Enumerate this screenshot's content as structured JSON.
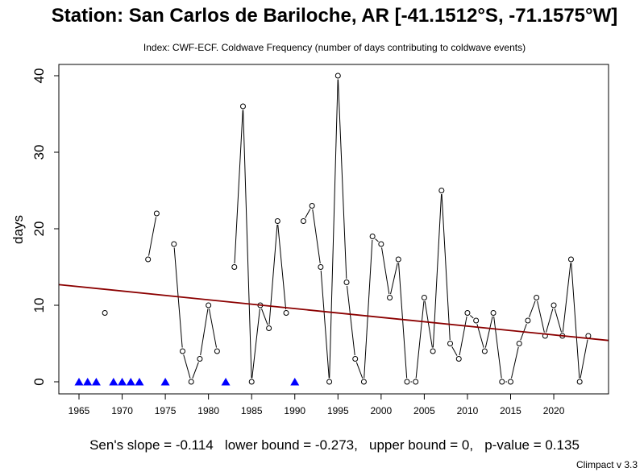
{
  "header": {
    "title": "Station: San Carlos de Bariloche, AR [-41.1512°S, -71.1575°W]",
    "subtitle": "Index: CWF-ECF. Coldwave Frequency (number of days contributing to coldwave events)"
  },
  "footer": {
    "stats": "Sen's slope = -0.114   lower bound = -0.273,   upper bound = 0,   p-value = 0.135",
    "credit": "Climpact v 3.3"
  },
  "colors": {
    "line": "#000000",
    "trend": "#8b0000",
    "missing_marker": "#0000ff",
    "axis": "#000000"
  },
  "chart_data": {
    "type": "line",
    "title": "Station: San Carlos de Bariloche, AR [-41.1512°S, -71.1575°W]",
    "subtitle": "Index: CWF-ECF. Coldwave Frequency (number of days contributing to coldwave events)",
    "xlabel": "",
    "ylabel": "days",
    "xlim": [
      1962.7,
      2026.4
    ],
    "ylim": [
      -1.6,
      41.6
    ],
    "xticks": [
      1965,
      1970,
      1975,
      1980,
      1985,
      1990,
      1995,
      2000,
      2005,
      2010,
      2015,
      2020
    ],
    "yticks": [
      0,
      10,
      20,
      30,
      40
    ],
    "grid": false,
    "legend": null,
    "x": [
      1965,
      1966,
      1967,
      1968,
      1969,
      1970,
      1971,
      1972,
      1973,
      1974,
      1975,
      1976,
      1977,
      1978,
      1979,
      1980,
      1981,
      1982,
      1983,
      1984,
      1985,
      1986,
      1987,
      1988,
      1989,
      1990,
      1991,
      1992,
      1993,
      1994,
      1995,
      1996,
      1997,
      1998,
      1999,
      2000,
      2001,
      2002,
      2003,
      2004,
      2005,
      2006,
      2007,
      2008,
      2009,
      2010,
      2011,
      2012,
      2013,
      2014,
      2015,
      2016,
      2017,
      2018,
      2019,
      2020,
      2021,
      2022,
      2023,
      2024
    ],
    "series": [
      {
        "name": "CWF-ECF",
        "values": [
          null,
          null,
          null,
          9,
          null,
          null,
          null,
          null,
          16,
          22,
          null,
          18,
          4,
          0,
          3,
          10,
          4,
          null,
          15,
          36,
          0,
          10,
          7,
          21,
          9,
          null,
          21,
          23,
          15,
          0,
          40,
          13,
          3,
          0,
          19,
          18,
          11,
          16,
          0,
          0,
          11,
          4,
          25,
          5,
          3,
          9,
          8,
          4,
          9,
          0,
          0,
          5,
          8,
          11,
          6,
          10,
          6,
          16,
          0,
          6
        ]
      }
    ],
    "missing_years": [
      1965,
      1966,
      1967,
      1969,
      1970,
      1971,
      1972,
      1975,
      1982,
      1990
    ],
    "trend_line": {
      "label": "Sen's slope trend",
      "x": [
        1962.7,
        2026.4
      ],
      "y": [
        12.7,
        5.4
      ]
    },
    "annotations": [
      "Sen's slope = -0.114   lower bound = -0.273,   upper bound = 0,   p-value = 0.135",
      "Climpact v 3.3"
    ]
  }
}
